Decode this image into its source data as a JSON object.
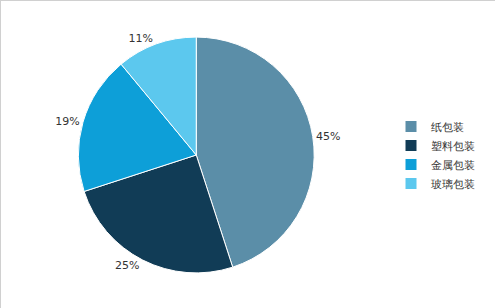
{
  "chart_data": {
    "type": "pie",
    "categories": [
      "纸包装",
      "塑料包装",
      "金属包装",
      "玻璃包装"
    ],
    "values": [
      45,
      25,
      19,
      11
    ],
    "value_labels": [
      "45%",
      "25%",
      "19%",
      "11%"
    ],
    "colors": [
      "#5b8ea8",
      "#113c56",
      "#0d9fd8",
      "#5cc8ee"
    ],
    "data_labels": true,
    "legend": "right"
  }
}
